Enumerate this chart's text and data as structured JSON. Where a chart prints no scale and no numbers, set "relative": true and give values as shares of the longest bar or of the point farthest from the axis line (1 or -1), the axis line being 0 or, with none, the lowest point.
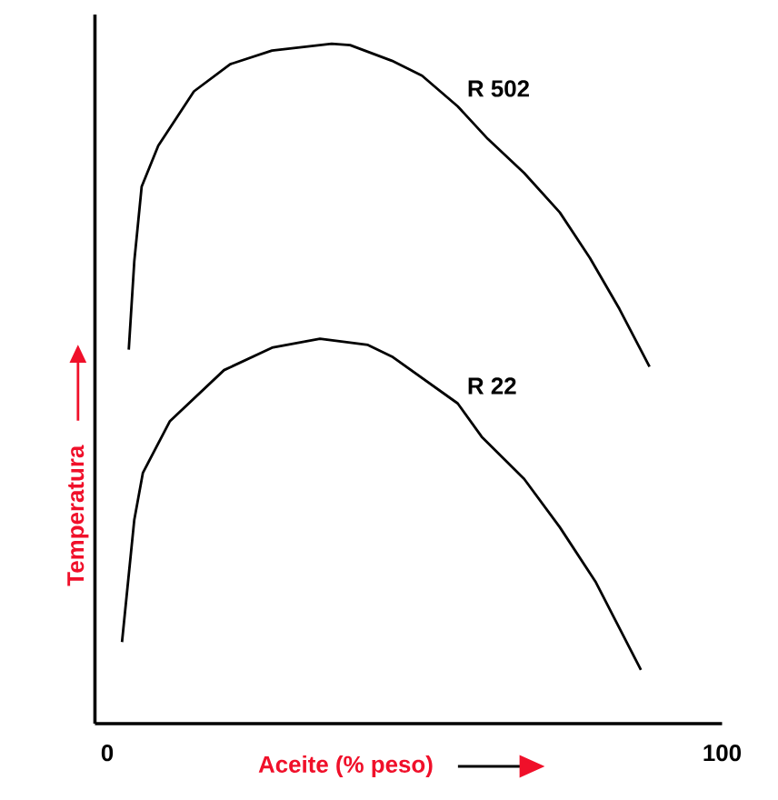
{
  "chart_data": {
    "type": "line",
    "relative": true,
    "xlabel": "Aceite (% peso)",
    "ylabel": "Temperatura",
    "xlim": [
      -2,
      100
    ],
    "xticks": [
      0,
      100
    ],
    "tick_labels": "x",
    "line_style": "solid",
    "series": [
      {
        "name": "R 502",
        "color": "#000000",
        "x": [
          3.5,
          4.4,
          5.6,
          8.3,
          14.1,
          20.0,
          26.8,
          36.5,
          39.5,
          46.3,
          51.2,
          57.0,
          61.9,
          67.8,
          73.6,
          78.5,
          83.3,
          88.2
        ],
        "values": [
          0.55,
          0.68,
          0.79,
          0.85,
          0.93,
          0.97,
          0.99,
          1.0,
          0.998,
          0.975,
          0.953,
          0.908,
          0.86,
          0.81,
          0.752,
          0.685,
          0.61,
          0.525
        ]
      },
      {
        "name": "R 22",
        "color": "#000000",
        "x": [
          2.4,
          4.4,
          5.8,
          10.2,
          19.0,
          26.8,
          34.6,
          42.4,
          46.3,
          57.0,
          60.9,
          67.8,
          73.6,
          79.4,
          86.8
        ],
        "values": [
          0.12,
          0.3,
          0.369,
          0.445,
          0.52,
          0.553,
          0.566,
          0.557,
          0.54,
          0.471,
          0.422,
          0.36,
          0.289,
          0.209,
          0.079
        ]
      }
    ]
  }
}
